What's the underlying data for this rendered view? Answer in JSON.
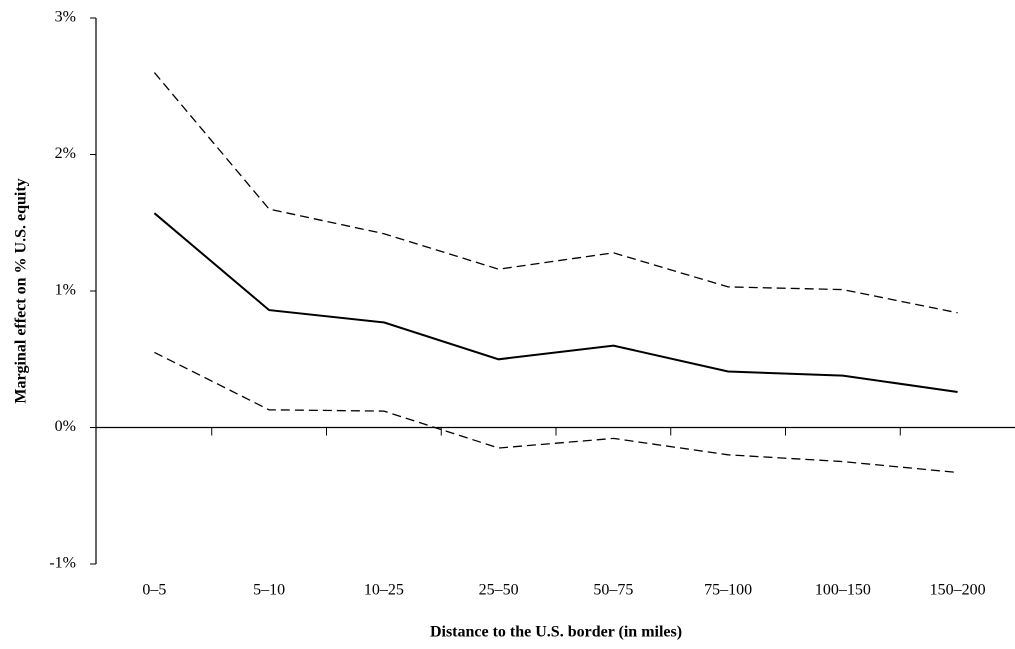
{
  "chart_data": {
    "type": "line",
    "x_label": "Distance to the U.S. border (in miles)",
    "y_label": "Marginal effect on % U.S. equity",
    "categories": [
      "0–5",
      "5–10",
      "10–25",
      "25–50",
      "50–75",
      "75–100",
      "100–150",
      "150–200"
    ],
    "series": [
      {
        "color": "#000000",
        "style": "solid",
        "values": [
          1.57,
          0.86,
          0.77,
          0.5,
          0.6,
          0.41,
          0.38,
          0.26
        ]
      },
      {
        "color": "#000000",
        "style": "dashed",
        "values": [
          2.6,
          1.6,
          1.42,
          1.16,
          1.28,
          1.03,
          1.01,
          0.84
        ]
      },
      {
        "color": "#000000",
        "style": "dashed",
        "values": [
          0.55,
          0.13,
          0.12,
          -0.15,
          -0.08,
          -0.2,
          -0.25,
          -0.33
        ]
      }
    ],
    "ylim": [
      -1,
      3
    ],
    "yticks": [
      {
        "value": 3,
        "label": "3%"
      },
      {
        "value": 2,
        "label": "2%"
      },
      {
        "value": 1,
        "label": "1%"
      },
      {
        "value": 0,
        "label": "0%"
      },
      {
        "value": -1,
        "label": "-1%"
      }
    ]
  }
}
